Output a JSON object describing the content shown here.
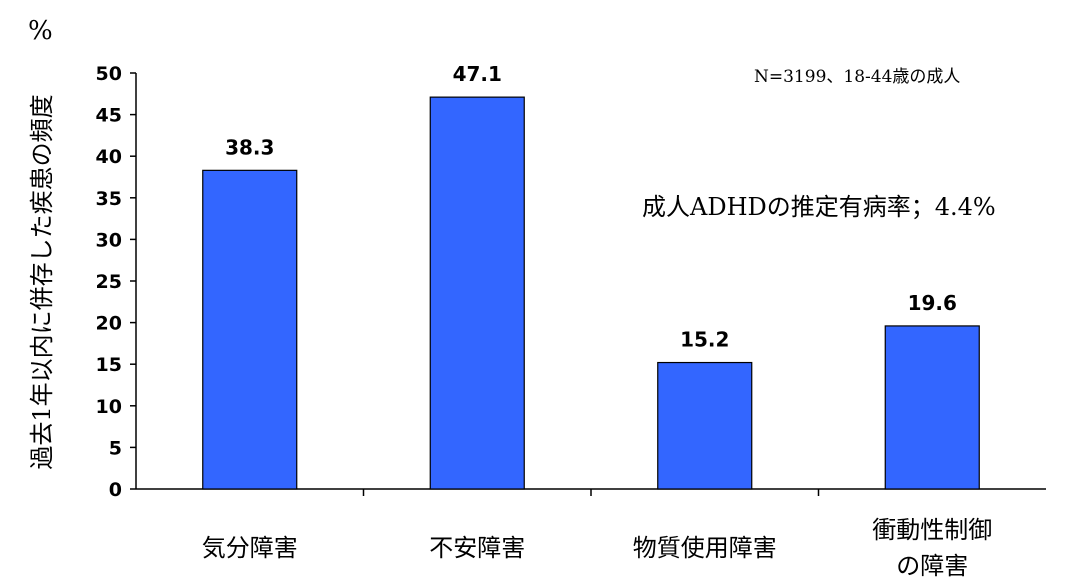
{
  "chart_data": {
    "type": "bar",
    "unit_label": "%",
    "ylabel": "過去1年以内に併存した疾患の頻度",
    "categories": [
      [
        "気分障害"
      ],
      [
        "不安障害"
      ],
      [
        "物質使用障害"
      ],
      [
        "衝動性制御",
        "の障害"
      ]
    ],
    "values": [
      38.3,
      47.1,
      15.2,
      19.6
    ],
    "value_labels": [
      "38.3",
      "47.1",
      "15.2",
      "19.6"
    ],
    "ylim": [
      0,
      50
    ],
    "yticks": [
      "0",
      "5",
      "10",
      "15",
      "20",
      "25",
      "30",
      "35",
      "40",
      "45",
      "50"
    ],
    "grid": false,
    "bar_color": "#3366FF",
    "annotations": [
      "N=3199、18-44歳の成人",
      "成人ADHDの推定有病率；4.4%"
    ]
  }
}
